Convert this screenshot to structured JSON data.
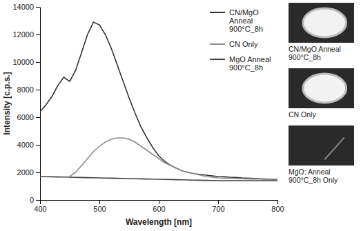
{
  "chart_data": {
    "type": "line",
    "xlabel": "Wavelength [nm]",
    "ylabel": "Intensity [c.p.s.]",
    "x": [
      400,
      410,
      420,
      430,
      440,
      450,
      460,
      470,
      480,
      490,
      500,
      510,
      520,
      530,
      540,
      550,
      560,
      570,
      580,
      590,
      600,
      610,
      620,
      630,
      640,
      650,
      660,
      670,
      680,
      690,
      700,
      710,
      720,
      730,
      740,
      750,
      760,
      770,
      780,
      790,
      800
    ],
    "series": [
      {
        "name": "CN/MgO Anneal 900°C_8h",
        "color": "#333333",
        "values": [
          6400,
          6900,
          7500,
          8300,
          8900,
          8600,
          9400,
          10700,
          12000,
          12900,
          12700,
          12000,
          11000,
          9800,
          8600,
          7400,
          6300,
          5300,
          4500,
          3800,
          3200,
          2800,
          2500,
          2300,
          2100,
          2000,
          1900,
          1850,
          1800,
          1750,
          1700,
          1680,
          1650,
          1630,
          1600,
          1580,
          1560,
          1540,
          1520,
          1500,
          1500
        ]
      },
      {
        "name": "CN Only",
        "color": "#8c8c8c",
        "values": [
          null,
          null,
          null,
          null,
          null,
          1700,
          2000,
          2500,
          3000,
          3500,
          3900,
          4200,
          4400,
          4500,
          4500,
          4400,
          4200,
          3900,
          3600,
          3300,
          3000,
          2700,
          2500,
          2300,
          2100,
          2000,
          1900,
          1800,
          1700,
          1650,
          1600,
          1580,
          1560,
          1550,
          1540,
          1530,
          1520,
          1510,
          1500,
          1500,
          1500
        ]
      },
      {
        "name": "MgO Anneal 900°C_8h",
        "color": "#404040",
        "values": [
          1700,
          1690,
          1680,
          1670,
          1660,
          1650,
          1640,
          1630,
          1620,
          1610,
          1600,
          1590,
          1580,
          1570,
          1560,
          1550,
          1540,
          1530,
          1520,
          1510,
          1500,
          1490,
          1480,
          1470,
          1460,
          1450,
          1440,
          1430,
          1420,
          1410,
          1400,
          1400,
          1400,
          1400,
          1400,
          1400,
          1400,
          1400,
          1400,
          1400,
          1400
        ]
      }
    ],
    "xlim": [
      400,
      800
    ],
    "xticks": [
      400,
      500,
      600,
      700,
      800
    ],
    "ylim": [
      0,
      14000
    ],
    "yticks": [
      0,
      2000,
      4000,
      6000,
      8000,
      10000,
      12000,
      14000
    ],
    "legend": "upper right",
    "annotations": [
      "CN/MgO Anneal 900°C_8h",
      "CN Only",
      "MgO: Anneal 900°C_8h Only"
    ]
  }
}
